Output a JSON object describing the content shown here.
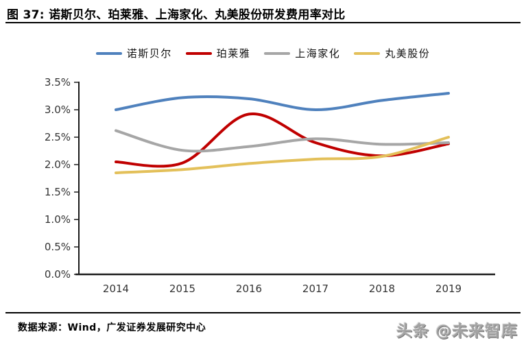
{
  "page": {
    "title": "图 37:  诺斯贝尔、珀莱雅、上海家化、丸美股份研发费用率对比",
    "source_note": "数据来源：Wind，广发证券发展研究中心",
    "watermark": "头条 @未来智库"
  },
  "chart_data": {
    "type": "line",
    "title": "诺斯贝尔、珀莱雅、上海家化、丸美股份研发费用率对比",
    "x": [
      "2014",
      "2015",
      "2016",
      "2017",
      "2018",
      "2019"
    ],
    "series": [
      {
        "name": "诺斯贝尔",
        "color": "#4F81BD",
        "values": [
          3.0,
          3.22,
          3.2,
          3.0,
          3.17,
          3.3
        ]
      },
      {
        "name": "珀莱雅",
        "color": "#C00000",
        "values": [
          2.05,
          2.03,
          2.92,
          2.4,
          2.16,
          2.38
        ]
      },
      {
        "name": "上海家化",
        "color": "#A6A6A6",
        "values": [
          2.62,
          2.26,
          2.33,
          2.47,
          2.37,
          2.4
        ]
      },
      {
        "name": "丸美股份",
        "color": "#E3C05A",
        "values": [
          1.85,
          1.91,
          2.02,
          2.1,
          2.15,
          2.5
        ]
      }
    ],
    "xlabel": "",
    "ylabel": "",
    "ylim": [
      0,
      3.5
    ],
    "ytick_step": 0.5,
    "yticks": [
      "0.0%",
      "0.5%",
      "1.0%",
      "1.5%",
      "2.0%",
      "2.5%",
      "3.0%",
      "3.5%"
    ],
    "legend_position": "top",
    "grid": false,
    "smoothed_lines": true,
    "axis_color": "#1a1a1a",
    "line_width": 4
  }
}
